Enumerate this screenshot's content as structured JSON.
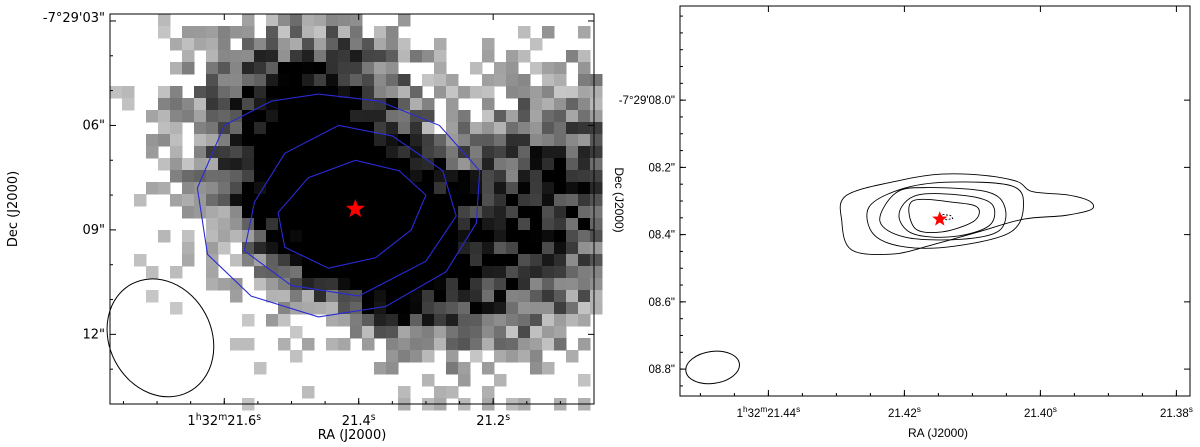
{
  "chart_data": [
    {
      "type": "heatmap",
      "xlabel": "RA (J2000)",
      "ylabel": "Dec (J2000)",
      "x_ticks": [
        {
          "label": "1h32m21.6s",
          "value_s": 21.6
        },
        {
          "label": "21.4s",
          "value_s": 21.4
        },
        {
          "label": "21.2s",
          "value_s": 21.2
        }
      ],
      "y_ticks": [
        {
          "label": "-7°29'03\"",
          "value_arcsec": 3
        },
        {
          "label": "06\"",
          "value_arcsec": 6
        },
        {
          "label": "09\"",
          "value_arcsec": 9
        },
        {
          "label": "12\"",
          "value_arcsec": 12
        }
      ],
      "xlim_s": [
        21.77,
        21.05
      ],
      "ylim_arcsec": [
        14.0,
        2.8
      ],
      "grayscale": "inverted (white = low, black = high)",
      "star_marker": {
        "ra_s": 21.405,
        "dec_arcsec": 8.4,
        "color": "#ff0000"
      },
      "contour_color": "#2a2ad8",
      "contours": [
        {
          "level": 1,
          "ra_s": [
            21.405,
            21.34,
            21.3,
            21.322,
            21.375,
            21.445,
            21.51,
            21.52,
            21.475,
            21.405
          ],
          "dec_arcsec": [
            7.0,
            7.3,
            8.0,
            9.0,
            9.8,
            10.1,
            9.5,
            8.5,
            7.5,
            7.0
          ]
        },
        {
          "level": 2,
          "ra_s": [
            21.43,
            21.35,
            21.275,
            21.255,
            21.3,
            21.4,
            21.5,
            21.57,
            21.555,
            21.51,
            21.43
          ],
          "dec_arcsec": [
            6.0,
            6.3,
            7.3,
            8.6,
            9.9,
            10.9,
            10.6,
            9.6,
            8.2,
            6.8,
            6.0
          ]
        },
        {
          "level": 3,
          "ra_s": [
            21.46,
            21.37,
            21.28,
            21.22,
            21.225,
            21.27,
            21.36,
            21.46,
            21.56,
            21.625,
            21.64,
            21.6,
            21.53,
            21.46
          ],
          "dec_arcsec": [
            5.1,
            5.3,
            6.0,
            7.3,
            8.8,
            10.2,
            11.2,
            11.5,
            10.9,
            9.7,
            7.8,
            6.0,
            5.3,
            5.1
          ]
        }
      ],
      "beam": {
        "ra_s": 21.695,
        "dec_arcsec": 12.1,
        "shape": "ellipse"
      }
    },
    {
      "type": "line",
      "xlabel": "RA (J2000)",
      "ylabel": "Dec (J2000)",
      "x_ticks": [
        {
          "label": "1h32m21.44s",
          "value_s": 21.44
        },
        {
          "label": "21.42s",
          "value_s": 21.42
        },
        {
          "label": "21.40s",
          "value_s": 21.4
        },
        {
          "label": "21.38s",
          "value_s": 21.38
        }
      ],
      "y_ticks": [
        {
          "label": "-7°29'08.0\"",
          "value_arcsec": 8.0
        },
        {
          "label": "08.2\"",
          "value_arcsec": 8.2
        },
        {
          "label": "08.4\"",
          "value_arcsec": 8.4
        },
        {
          "label": "08.6\"",
          "value_arcsec": 8.6
        },
        {
          "label": "08.8\"",
          "value_arcsec": 8.8
        }
      ],
      "xlim_s": [
        21.453,
        21.378
      ],
      "ylim_arcsec": [
        7.72,
        8.88
      ],
      "star_marker": {
        "ra_s": 21.4148,
        "dec_arcsec": 8.354,
        "color": "#ff0000"
      },
      "contour_color": "#000000",
      "contours": [
        {
          "level": 1,
          "ra_s": [
            21.4144,
            21.4132,
            21.4129,
            21.4138,
            21.4146,
            21.4144
          ],
          "dec_arcsec": [
            8.34,
            8.343,
            8.352,
            8.356,
            8.349,
            8.34
          ]
        },
        {
          "level": 2,
          "ra_s": [
            21.4188,
            21.4123,
            21.4092,
            21.4098,
            21.4145,
            21.4185,
            21.4188
          ],
          "dec_arcsec": [
            8.3,
            8.305,
            8.32,
            8.36,
            8.392,
            8.38,
            8.3
          ]
        },
        {
          "level": 3,
          "ra_s": [
            21.4182,
            21.4111,
            21.4071,
            21.4075,
            21.4128,
            21.4188,
            21.4208,
            21.4182
          ],
          "dec_arcsec": [
            8.283,
            8.284,
            8.31,
            8.373,
            8.406,
            8.397,
            8.34,
            8.283
          ]
        },
        {
          "level": 4,
          "ra_s": [
            21.4165,
            21.4078,
            21.4052,
            21.4061,
            21.4117,
            21.4198,
            21.4236,
            21.4212,
            21.4165
          ],
          "dec_arcsec": [
            8.26,
            8.273,
            8.32,
            8.389,
            8.414,
            8.408,
            8.36,
            8.275,
            8.26
          ]
        },
        {
          "level": 5,
          "ra_s": [
            21.4138,
            21.4042,
            21.4025,
            21.4045,
            21.4125,
            21.4198,
            21.4245,
            21.4252,
            21.4205,
            21.4138
          ],
          "dec_arcsec": [
            8.244,
            8.255,
            8.318,
            8.394,
            8.434,
            8.437,
            8.4,
            8.318,
            8.265,
            8.244
          ]
        },
        {
          "level": 6,
          "ra_s": [
            21.4145,
            21.4082,
            21.4034,
            21.4012,
            21.396,
            21.3928,
            21.3925,
            21.3964,
            21.4025,
            21.4088,
            21.4158,
            21.4218,
            21.4278,
            21.4292,
            21.4285,
            21.4205,
            21.4145
          ],
          "dec_arcsec": [
            8.22,
            8.224,
            8.242,
            8.272,
            8.282,
            8.3,
            8.325,
            8.343,
            8.354,
            8.39,
            8.43,
            8.458,
            8.445,
            8.36,
            8.283,
            8.238,
            8.22
          ]
        }
      ],
      "beam": {
        "ra_s": 21.4482,
        "dec_arcsec": 8.795,
        "shape": "ellipse"
      }
    }
  ]
}
